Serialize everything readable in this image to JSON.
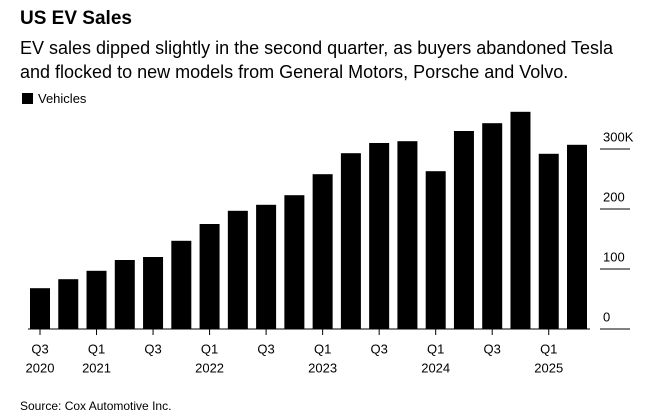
{
  "chart_data": {
    "type": "bar",
    "title": "US EV Sales",
    "subtitle": "EV sales dipped slightly in the second quarter, as buyers abandoned Tesla and flocked to new models from General Motors, Porsche and Volvo.",
    "categories": [
      "Q3",
      null,
      "Q1",
      null,
      "Q3",
      null,
      "Q1",
      null,
      "Q3",
      null,
      "Q1",
      null,
      "Q3",
      null,
      "Q1",
      null,
      "Q3",
      null,
      "Q1",
      null
    ],
    "category_years": [
      "2020",
      null,
      "2021",
      null,
      null,
      null,
      "2022",
      null,
      null,
      null,
      "2023",
      null,
      null,
      null,
      "2024",
      null,
      null,
      null,
      "2025",
      null
    ],
    "series": [
      {
        "name": "Vehicles",
        "color": "#000000",
        "values": [
          68,
          83,
          97,
          115,
          120,
          147,
          175,
          197,
          207,
          223,
          258,
          293,
          310,
          313,
          263,
          330,
          343,
          362,
          292,
          307
        ]
      }
    ],
    "ylim": [
      0,
      370
    ],
    "yticks": [
      0,
      100,
      200,
      {
        "value": 300,
        "label": "300K"
      }
    ],
    "source": "Source: Cox Automotive Inc."
  }
}
